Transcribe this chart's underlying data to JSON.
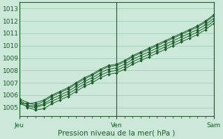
{
  "xlabel": "Pression niveau de la mer( hPa )",
  "bg_color": "#cce8d8",
  "grid_color": "#99ccb0",
  "line_color": "#1a5c2a",
  "marker_color": "#1a5c2a",
  "xlim": [
    0,
    48
  ],
  "ylim": [
    1004.3,
    1013.5
  ],
  "yticks": [
    1005,
    1006,
    1007,
    1008,
    1009,
    1010,
    1011,
    1012,
    1013
  ],
  "xtick_labels": [
    "Jeu",
    "Ven",
    "Sam"
  ],
  "xtick_positions": [
    0,
    24,
    48
  ],
  "series": [
    {
      "x": [
        0,
        2,
        4,
        6,
        8,
        10,
        12,
        14,
        16,
        18,
        20,
        22,
        24,
        26,
        28,
        30,
        32,
        34,
        36,
        38,
        40,
        42,
        44,
        46,
        48
      ],
      "y": [
        1005.3,
        1005.1,
        1005.0,
        1005.2,
        1005.5,
        1005.8,
        1006.1,
        1006.5,
        1006.9,
        1007.2,
        1007.6,
        1007.9,
        1008.0,
        1008.3,
        1008.7,
        1009.0,
        1009.3,
        1009.6,
        1009.9,
        1010.2,
        1010.5,
        1010.8,
        1011.1,
        1011.5,
        1012.0
      ]
    },
    {
      "x": [
        0,
        2,
        4,
        6,
        8,
        10,
        12,
        14,
        16,
        18,
        20,
        22,
        24,
        26,
        28,
        30,
        32,
        34,
        36,
        38,
        40,
        42,
        44,
        46,
        48
      ],
      "y": [
        1005.5,
        1005.0,
        1004.8,
        1004.9,
        1005.3,
        1005.6,
        1005.9,
        1006.3,
        1006.7,
        1007.0,
        1007.4,
        1007.7,
        1007.8,
        1008.1,
        1008.5,
        1008.8,
        1009.1,
        1009.4,
        1009.7,
        1010.0,
        1010.3,
        1010.6,
        1010.9,
        1011.3,
        1011.8
      ]
    },
    {
      "x": [
        0,
        2,
        4,
        6,
        8,
        10,
        12,
        14,
        16,
        18,
        20,
        22,
        24,
        26,
        28,
        30,
        32,
        34,
        36,
        38,
        40,
        42,
        44,
        46,
        48
      ],
      "y": [
        1005.6,
        1005.2,
        1005.1,
        1005.3,
        1005.7,
        1006.0,
        1006.3,
        1006.7,
        1007.1,
        1007.4,
        1007.8,
        1008.1,
        1008.2,
        1008.5,
        1008.9,
        1009.2,
        1009.5,
        1009.8,
        1010.1,
        1010.4,
        1010.7,
        1011.0,
        1011.3,
        1011.7,
        1012.2
      ]
    },
    {
      "x": [
        0,
        2,
        4,
        6,
        8,
        10,
        12,
        14,
        16,
        18,
        20,
        22,
        24,
        26,
        28,
        30,
        32,
        34,
        36,
        38,
        40,
        42,
        44,
        46,
        48
      ],
      "y": [
        1005.4,
        1005.3,
        1005.4,
        1005.6,
        1006.0,
        1006.3,
        1006.6,
        1007.0,
        1007.4,
        1007.7,
        1008.1,
        1008.4,
        1008.5,
        1008.8,
        1009.2,
        1009.5,
        1009.8,
        1010.1,
        1010.4,
        1010.7,
        1011.0,
        1011.3,
        1011.6,
        1012.0,
        1012.5
      ]
    },
    {
      "x": [
        0,
        2,
        4,
        6,
        8,
        10,
        12,
        14,
        16,
        18,
        20,
        22,
        24,
        26,
        28,
        30,
        32,
        34,
        36,
        38,
        40,
        42,
        44,
        46,
        48
      ],
      "y": [
        1005.7,
        1005.4,
        1005.2,
        1005.5,
        1005.9,
        1006.2,
        1006.5,
        1006.9,
        1007.3,
        1007.6,
        1008.0,
        1008.3,
        1008.4,
        1008.7,
        1009.1,
        1009.4,
        1009.7,
        1010.0,
        1010.3,
        1010.6,
        1010.9,
        1011.2,
        1011.5,
        1011.9,
        1012.4
      ]
    }
  ],
  "minor_xtick_step": 2,
  "xlabel_fontsize": 7.5,
  "tick_label_fontsize": 6.5
}
